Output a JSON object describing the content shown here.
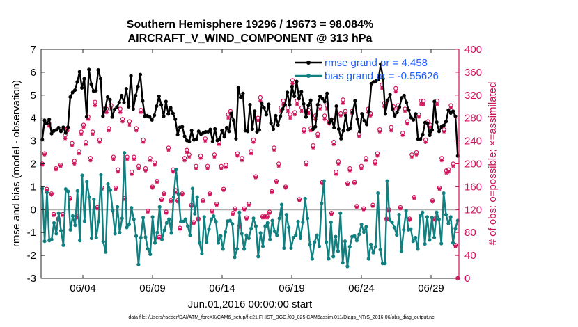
{
  "chart_data": {
    "type": "line",
    "title_line1": "Southern Hemisphere 19296 / 19673 = 98.084%",
    "title_line2": "AIRCRAFT_V_WIND_COMPONENT @ 313 hPa",
    "xlabel": "Jun.01,2016 00:00:00 start",
    "ylabel_left": "rmse and bias (model - observation)",
    "ylabel_right": "# of obs: o=possible; ×=assimilated",
    "footer": "data file: /Users/raeder/DAI/ATM_forcXX/CAM6_setup/f.e21.FHIST_BGC.f09_025.CAM6assim.011/Diags_NTrS_2016-06/obs_diag_output.nc",
    "xlim": [
      1,
      31
    ],
    "ylim_left": [
      -3,
      7
    ],
    "ylim_right": [
      0,
      400
    ],
    "left_ticks": [
      "-3",
      "-2",
      "-1",
      "0",
      "1",
      "2",
      "3",
      "4",
      "5",
      "6",
      "7"
    ],
    "right_ticks": [
      "0",
      "40",
      "80",
      "120",
      "160",
      "200",
      "240",
      "280",
      "320",
      "360",
      "400"
    ],
    "x_ticks": [
      {
        "label": "06/04",
        "value": 4
      },
      {
        "label": "06/09",
        "value": 9
      },
      {
        "label": "06/14",
        "value": 14
      },
      {
        "label": "06/19",
        "value": 19
      },
      {
        "label": "06/24",
        "value": 24
      },
      {
        "label": "06/29",
        "value": 29
      }
    ],
    "colors": {
      "rmse": "#000000",
      "bias": "#108080",
      "obs": "#d0105a",
      "zero": "#b0b0b0",
      "legend_text": "#1f5fff"
    },
    "series": [
      {
        "name": "rmse grand pr = 4.458",
        "legend": "rmse grand pr = 4.458",
        "axis": "left",
        "values": [
          3.06,
          3.9,
          3.76,
          3.94,
          3.32,
          3.44,
          3.48,
          3.58,
          3.42,
          3.6,
          3.35,
          3.6,
          4.92,
          5.12,
          5.22,
          5.58,
          6.02,
          5.32,
          5.72,
          4.05,
          6.12,
          5.48,
          5.18,
          5.2,
          6.1,
          5.72,
          4.08,
          4.42,
          4.92,
          4.8,
          4.05,
          4.38,
          4.48,
          4.68,
          4.98,
          4.68,
          5.28,
          4.5,
          5.85,
          4.4,
          4.98,
          5.38,
          5.9,
          4.75,
          4.08,
          4.1,
          4.05,
          3.92,
          4.12,
          4.52,
          4.95,
          4.58,
          4.08,
          4.72,
          4.18,
          4.45,
          4.2,
          3.95,
          3.28,
          3.6,
          3.62,
          3.2,
          3.02,
          2.98,
          3.45,
          3.05,
          3.08,
          3.42,
          3.3,
          3.35,
          3.4,
          3.4,
          3.5,
          2.98,
          3.52,
          3.02,
          3.08,
          3.45,
          3.18,
          3.58,
          3.42,
          4.2,
          3.9,
          3.1,
          5.32,
          4.9,
          5.08,
          3.45,
          3.42,
          4.58,
          3.52,
          4.3,
          3.4,
          3.48,
          4.65,
          4.45,
          4.15,
          4.6,
          3.78,
          3.52,
          4.1,
          3.7,
          4.08,
          4.4,
          4.58,
          5.12,
          4.58,
          5.38,
          4.95,
          5.6,
          4.85,
          5.15,
          4.62,
          4.05,
          4.55,
          4.78,
          3.52,
          3.62,
          4.58,
          4.95,
          4.85,
          4.72,
          5.08,
          3.8,
          3.95,
          3.58,
          4.52,
          3.52,
          3.1,
          3.45,
          4.1,
          3.48,
          3.55,
          4.25,
          4.75,
          3.95,
          3.42,
          4.18,
          3.88,
          3.72,
          4.28,
          5.5,
          5.58,
          5.62,
          5.7,
          6.35,
          5.72,
          4.18,
          4.78,
          5.02,
          4.4,
          4.1,
          4.25,
          4.48,
          4.88,
          4.98,
          4.68,
          4.35,
          4.02,
          3.92,
          4.18,
          3.08,
          3.08,
          3.28,
          3.8,
          3.78,
          3.25,
          3.48,
          4.72,
          3.82,
          3.42,
          3.62,
          3.68,
          3.85,
          4.35,
          4.22,
          4.3,
          4.08,
          2.35
        ]
      },
      {
        "name": "bias grand pr = -0.55626",
        "legend": "bias grand pr = -0.55626",
        "axis": "left",
        "values": [
          0.92,
          -1.38,
          0.75,
          -1.35,
          -1.3,
          -0.58,
          -1.05,
          -0.15,
          -0.92,
          -1.55,
          0.9,
          0.8,
          -0.88,
          -0.28,
          -0.68,
          0.82,
          -1.35,
          1.5,
          -0.5,
          1.22,
          0.55,
          -1.25,
          0.45,
          -1.22,
          -0.52,
          1.52,
          -1.4,
          -1.85,
          1.12,
          0.85,
          -0.05,
          -1.05,
          0.12,
          -1.0,
          -0.38,
          2.48,
          -0.78,
          -0.65,
          0.08,
          -0.42,
          -1.15,
          -2.4,
          -1.22,
          -0.35,
          -1.2,
          -1.72,
          -1.95,
          -0.32,
          -1.45,
          -1.0,
          0.12,
          -1.3,
          -0.9,
          -0.58,
          -0.42,
          -1.02,
          0.55,
          1.75,
          0.68,
          -0.52,
          -0.52,
          -0.42,
          -0.72,
          -1.12,
          0.92,
          -0.18,
          0.55,
          -1.45,
          -1.92,
          -0.32,
          -1.42,
          -0.85,
          -0.42,
          -0.28,
          -0.52,
          -1.45,
          -1.15,
          -1.72,
          -0.98,
          -0.5,
          -0.48,
          -0.62,
          -2.08,
          -1.72,
          -0.12,
          -1.05,
          -1.72,
          -1.12,
          -1.25,
          -0.82,
          -0.38,
          -0.72,
          -2.05,
          -1.02,
          -1.6,
          -0.72,
          -0.58,
          -1.3,
          -0.48,
          -0.95,
          -1.12,
          -0.38,
          0.22,
          -1.68,
          -0.22,
          -0.78,
          -1.68,
          -1.22,
          -1.12,
          -0.52,
          -1.25,
          -0.55,
          0.48,
          -0.38,
          -1.52,
          -2.15,
          -1.42,
          -1.12,
          -1.6,
          0.28,
          1.25,
          -1.42,
          -2.15,
          -0.55,
          -2.05,
          -1.18,
          -1.82,
          -0.15,
          -2.32,
          -1.38,
          -2.48,
          -1.62,
          -1.18,
          -1.15,
          -1.35,
          -1.08,
          -0.65,
          -0.98,
          -0.75,
          -2.15,
          -1.52,
          -1.88,
          -1.62,
          0.72,
          -1.75,
          -2.35,
          -2.35,
          1.25,
          -0.45,
          -0.55,
          -0.78,
          -1.1,
          -0.22,
          -1.82,
          -0.88,
          -0.05,
          -0.88,
          -0.85,
          -1.38,
          -1.22,
          -1.72,
          -0.28,
          -0.12,
          -1.5,
          -0.32,
          -1.32,
          -0.35,
          -1.22,
          -0.12,
          -0.42,
          -1.48,
          0.72,
          -0.22,
          -0.6,
          -0.32,
          -1.45,
          -0.82,
          -0.48
        ]
      },
      {
        "name": "# of obs possible",
        "axis": "right",
        "marker": "o",
        "values": [
          200,
          218,
          156,
          270,
          148,
          112,
          192,
          104,
          198,
          112,
          250,
          262,
          140,
          236,
          205,
          108,
          222,
          256,
          268,
          238,
          282,
          210,
          256,
          308,
          124,
          242,
          158,
          296,
          296,
          262,
          302,
          212,
          158,
          190,
          296,
          278,
          140,
          212,
          274,
          186,
          212,
          262,
          196,
          294,
          242,
          192,
          118,
          210,
          160,
          202,
          170,
          72,
          138,
          148,
          116,
          228,
          136,
          190,
          154,
          136,
          88,
          148,
          210,
          224,
          216,
          128,
          98,
          196,
          104,
          214,
          136,
          244,
          196,
          148,
          118,
          216,
          130,
          238,
          196,
          156,
          198,
          286,
          292,
          114,
          122,
          218,
          92,
          210,
          122,
          106,
          130,
          222,
          242,
          178,
          280,
          316,
          108,
          108,
          108,
          116,
          152,
          228,
          170,
          200,
          298,
          310,
          160,
          298,
          286,
          346,
          290,
          310,
          138,
          298,
          260,
          202,
          294,
          262,
          232,
          284,
          252,
          300,
          168,
          284,
          302,
          274,
          114,
          238,
          186,
          204,
          288,
          312,
          292,
          166,
          192,
          292,
          168,
          126,
          252,
          196,
          122,
          210,
          296,
          288,
          128,
          204,
          218,
          260,
          338,
          306,
          104,
          120,
          264,
          300,
          332,
          302,
          124,
          254,
          296,
          274,
          104,
          216,
          142,
          220,
          286,
          310,
          310,
          242,
          274,
          268,
          136,
          104,
          310,
          158,
          210,
          260,
          188,
          190,
          302,
          200,
          58,
          0
        ]
      },
      {
        "name": "# of obs assimilated",
        "axis": "right",
        "marker": "x",
        "values": [
          198,
          216,
          154,
          266,
          146,
          110,
          190,
          102,
          196,
          110,
          244,
          258,
          138,
          232,
          200,
          106,
          218,
          252,
          264,
          234,
          278,
          206,
          252,
          302,
          122,
          238,
          156,
          290,
          290,
          258,
          296,
          208,
          156,
          186,
          290,
          274,
          138,
          208,
          268,
          182,
          208,
          258,
          192,
          290,
          238,
          188,
          116,
          206,
          158,
          198,
          168,
          70,
          136,
          146,
          114,
          224,
          134,
          186,
          150,
          134,
          86,
          146,
          206,
          220,
          212,
          126,
          96,
          192,
          102,
          210,
          134,
          240,
          192,
          146,
          116,
          212,
          128,
          234,
          192,
          154,
          194,
          280,
          288,
          112,
          120,
          214,
          90,
          206,
          120,
          104,
          128,
          218,
          238,
          176,
          276,
          310,
          106,
          106,
          106,
          114,
          150,
          224,
          168,
          196,
          292,
          304,
          158,
          292,
          280,
          340,
          286,
          304,
          136,
          292,
          256,
          198,
          288,
          258,
          228,
          278,
          248,
          296,
          166,
          278,
          296,
          270,
          112,
          234,
          182,
          200,
          284,
          306,
          288,
          164,
          188,
          288,
          166,
          124,
          248,
          192,
          120,
          206,
          290,
          284,
          126,
          200,
          214,
          256,
          332,
          300,
          102,
          118,
          258,
          296,
          326,
          296,
          122,
          250,
          292,
          270,
          102,
          212,
          140,
          216,
          282,
          304,
          304,
          238,
          270,
          264,
          134,
          102,
          304,
          156,
          206,
          256,
          184,
          186,
          298,
          196,
          56,
          0
        ]
      }
    ]
  }
}
